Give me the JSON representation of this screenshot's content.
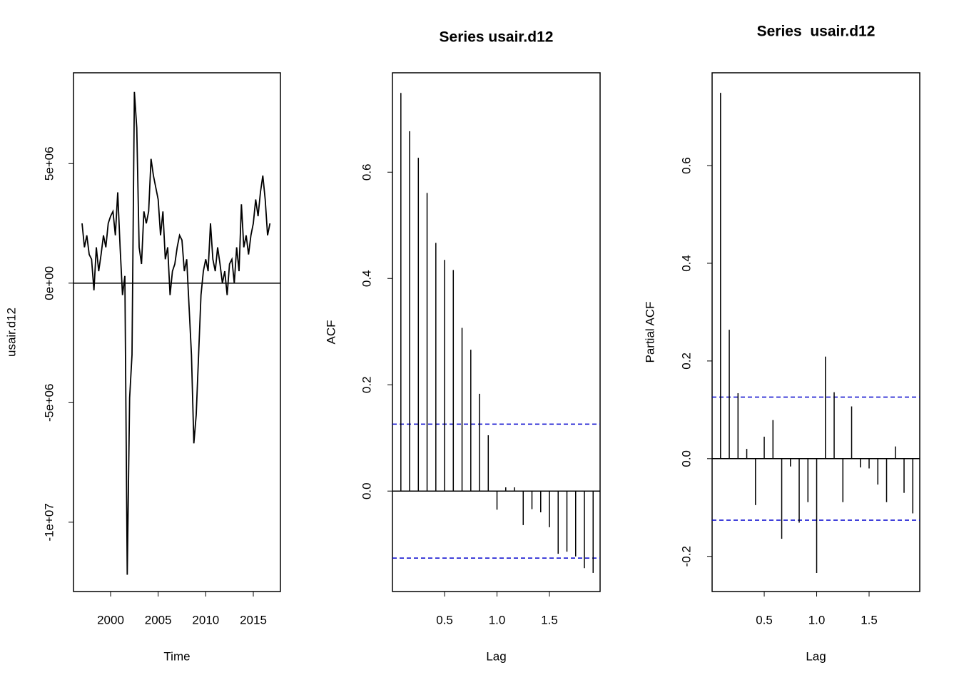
{
  "chart_data": [
    {
      "type": "line",
      "x_label": "Time",
      "y_label": "usair.d12",
      "color": "#000000",
      "hline": 0,
      "x": [
        1997,
        1997.25,
        1997.5,
        1997.75,
        1998,
        1998.25,
        1998.5,
        1998.75,
        1999,
        1999.25,
        1999.5,
        1999.75,
        2000,
        2000.25,
        2000.5,
        2000.75,
        2001,
        2001.25,
        2001.5,
        2001.75,
        2002,
        2002.25,
        2002.5,
        2002.75,
        2003,
        2003.25,
        2003.5,
        2003.75,
        2004,
        2004.25,
        2004.5,
        2004.75,
        2005,
        2005.25,
        2005.5,
        2005.75,
        2006,
        2006.25,
        2006.5,
        2006.75,
        2007,
        2007.25,
        2007.5,
        2007.75,
        2008,
        2008.25,
        2008.5,
        2008.75,
        2009,
        2009.25,
        2009.5,
        2009.75,
        2010,
        2010.25,
        2010.5,
        2010.75,
        2011,
        2011.25,
        2011.5,
        2011.75,
        2012,
        2012.25,
        2012.5,
        2012.75,
        2013,
        2013.25,
        2013.5,
        2013.75,
        2014,
        2014.25,
        2014.5,
        2014.75,
        2015,
        2015.25,
        2015.5,
        2015.75,
        2016,
        2016.25,
        2016.5,
        2016.75
      ],
      "values": [
        2500000,
        1500000,
        2000000,
        1200000,
        1000000,
        -300000,
        1500000,
        500000,
        1200000,
        2000000,
        1500000,
        2500000,
        2800000,
        3000000,
        2000000,
        3800000,
        1500000,
        -500000,
        300000,
        -12200000,
        -4800000,
        -3000000,
        8000000,
        6500000,
        1500000,
        800000,
        3000000,
        2500000,
        3000000,
        5200000,
        4500000,
        4000000,
        3500000,
        2000000,
        3000000,
        1000000,
        1500000,
        -500000,
        500000,
        800000,
        1500000,
        2000000,
        1800000,
        500000,
        1000000,
        -1000000,
        -3000000,
        -6700000,
        -5500000,
        -3000000,
        -500000,
        500000,
        1000000,
        500000,
        2500000,
        1000000,
        500000,
        1500000,
        800000,
        0,
        500000,
        -500000,
        800000,
        1000000,
        0,
        1500000,
        500000,
        3300000,
        1500000,
        2000000,
        1200000,
        2000000,
        2500000,
        3500000,
        2800000,
        3800000,
        4500000,
        3500000,
        2000000,
        2500000
      ],
      "xlim": [
        1996.1,
        2017.85
      ],
      "ylim": [
        -12900000,
        8800000
      ],
      "xticks": [
        2000,
        2005,
        2010,
        2015
      ],
      "yticks": [
        {
          "value": -10000000,
          "label": "-1e+07"
        },
        {
          "value": -5000000,
          "label": "-5e+06"
        },
        {
          "value": 0,
          "label": "0e+00"
        },
        {
          "value": 5000000,
          "label": "5e+06"
        }
      ]
    },
    {
      "type": "stem",
      "title": "Series usair.d12",
      "x_label": "Lag",
      "y_label": "ACF",
      "color": "#000000",
      "hline": 0,
      "conf_limits": [
        0.126,
        -0.126
      ],
      "conf_color": "#0000cd",
      "x": [
        0.0833,
        0.1667,
        0.25,
        0.3333,
        0.4167,
        0.5,
        0.5833,
        0.6667,
        0.75,
        0.8333,
        0.9167,
        1,
        1.0833,
        1.1667,
        1.25,
        1.3333,
        1.4167,
        1.5,
        1.5833,
        1.6667,
        1.75,
        1.8333,
        1.9167
      ],
      "values": [
        0.749,
        0.677,
        0.627,
        0.561,
        0.467,
        0.435,
        0.416,
        0.307,
        0.266,
        0.183,
        0.105,
        -0.035,
        0.007,
        0.007,
        -0.064,
        -0.034,
        -0.04,
        -0.068,
        -0.118,
        -0.114,
        -0.123,
        -0.145,
        -0.154
      ],
      "xlim": [
        0.003,
        1.983
      ],
      "ylim": [
        -0.189,
        0.787
      ],
      "xticks": [
        0.5,
        {
          "value": 1,
          "label": "1.0"
        },
        1.5
      ],
      "yticks": [
        {
          "value": 0,
          "label": "0.0"
        },
        0.2,
        0.4,
        0.6
      ]
    },
    {
      "type": "stem",
      "title": "Series  usair.d12",
      "x_label": "Lag",
      "y_label": "Partial ACF",
      "color": "#000000",
      "hline": 0,
      "conf_limits": [
        0.126,
        -0.126
      ],
      "conf_color": "#0000cd",
      "x": [
        0.0833,
        0.1667,
        0.25,
        0.3333,
        0.4167,
        0.5,
        0.5833,
        0.6667,
        0.75,
        0.8333,
        0.9167,
        1,
        1.0833,
        1.1667,
        1.25,
        1.3333,
        1.4167,
        1.5,
        1.5833,
        1.6667,
        1.75,
        1.8333,
        1.9167
      ],
      "values": [
        0.749,
        0.264,
        0.134,
        0.02,
        -0.095,
        0.045,
        0.079,
        -0.164,
        -0.016,
        -0.131,
        -0.089,
        -0.234,
        0.209,
        0.136,
        -0.089,
        0.107,
        -0.018,
        -0.02,
        -0.053,
        -0.089,
        0.025,
        -0.07,
        -0.112
      ],
      "xlim": [
        0.003,
        1.983
      ],
      "ylim": [
        -0.272,
        0.79
      ],
      "xticks": [
        0.5,
        {
          "value": 1,
          "label": "1.0"
        },
        1.5
      ],
      "yticks": [
        -0.2,
        {
          "value": 0,
          "label": "0.0"
        },
        0.2,
        0.4,
        0.6
      ]
    }
  ]
}
